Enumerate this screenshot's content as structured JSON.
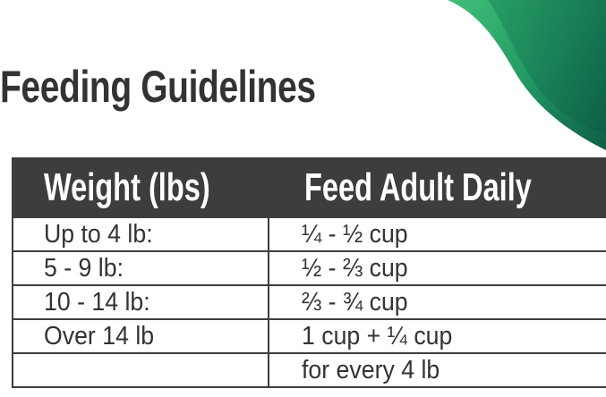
{
  "title": "Feeding Guidelines",
  "colors": {
    "header_bg": "#3d3d3d",
    "accent_green": "#2fa86a",
    "accent_dark_green": "#0d5e47"
  },
  "table": {
    "headers": [
      "Weight (lbs)",
      "Feed Adult Daily"
    ],
    "rows": [
      [
        "Up to 4 lb:",
        "¼ - ½ cup"
      ],
      [
        "5 - 9 lb:",
        "½ - ⅔ cup"
      ],
      [
        "10 - 14 lb:",
        "⅔ - ¾ cup"
      ],
      [
        "Over 14 lb",
        "1 cup + ¼ cup"
      ],
      [
        "",
        "for every 4 lb"
      ]
    ]
  }
}
